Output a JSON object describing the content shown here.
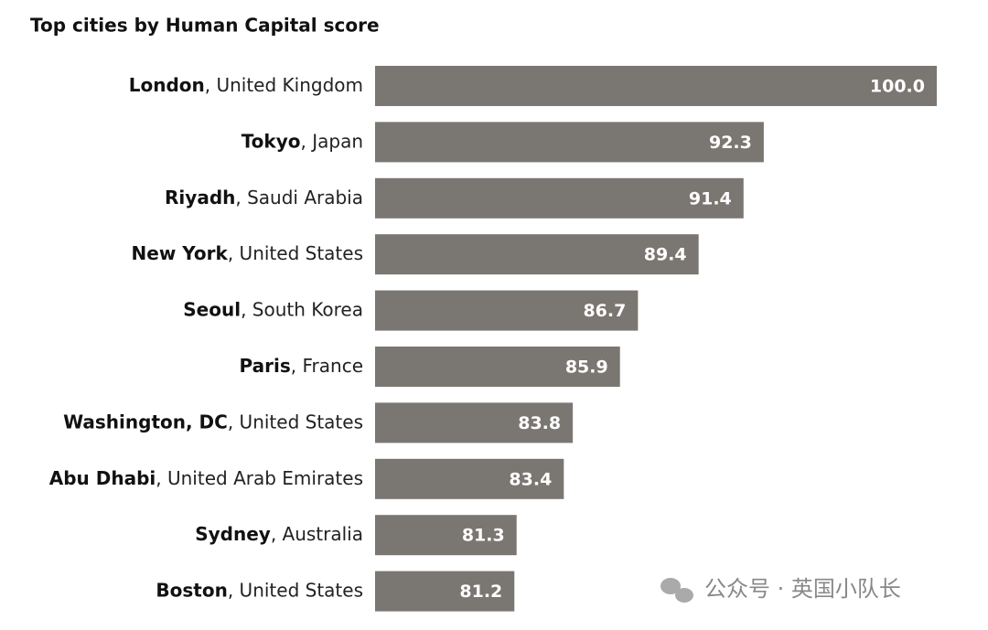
{
  "chart_data": {
    "type": "bar",
    "orientation": "horizontal",
    "title": "Top cities by Human Capital score",
    "cities": [
      "London",
      "Tokyo",
      "Riyadh",
      "New York",
      "Seoul",
      "Paris",
      "Washington, DC",
      "Abu Dhabi",
      "Sydney",
      "Boston"
    ],
    "categories": [
      ", United Kingdom",
      ", Japan",
      ", Saudi Arabia",
      ", United States",
      ", South Korea",
      ", France",
      ", United States",
      ", United Arab Emirates",
      ", Australia",
      ", United States"
    ],
    "values": [
      100,
      92.3,
      91.4,
      89.4,
      86.7,
      85.9,
      83.8,
      83.4,
      81.3,
      81.2
    ],
    "value_labels": [
      "100.0",
      "92.3",
      "91.4",
      "89.4",
      "86.7",
      "85.9",
      "83.8",
      "83.4",
      "81.3",
      "81.2"
    ],
    "color": "#7a7672",
    "xlim": [
      75,
      100
    ],
    "watermark": "公众号 · 英国小队长"
  }
}
